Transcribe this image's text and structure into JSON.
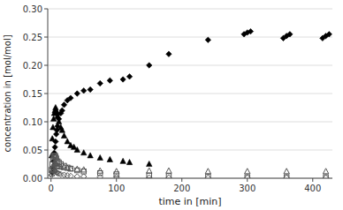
{
  "chart_data": {
    "type": "scatter",
    "xlabel": "time in [min]",
    "ylabel": "concentration in [mol/mol]",
    "xlim": [
      -5,
      430
    ],
    "ylim": [
      0,
      0.3
    ],
    "xticks": [
      0,
      100,
      200,
      300,
      400
    ],
    "yticks": [
      {
        "value": 0.0,
        "label": "0.00"
      },
      0.05,
      {
        "value": 0.1,
        "label": "0.10"
      },
      0.15,
      {
        "value": 0.2,
        "label": "0.20"
      },
      0.25,
      {
        "value": 0.3,
        "label": "0.30"
      }
    ],
    "grid": "y",
    "series": [
      {
        "color": "#000000",
        "marker": "diamond",
        "x": [
          2,
          3,
          4,
          5,
          6,
          7,
          8,
          9,
          10,
          12,
          15,
          17,
          20,
          25,
          30,
          40,
          50,
          60,
          75,
          90,
          110,
          120,
          150,
          180,
          240,
          295,
          300,
          305,
          355,
          360,
          365,
          415,
          420,
          425
        ],
        "values": [
          0.01,
          0.018,
          0.03,
          0.045,
          0.055,
          0.065,
          0.078,
          0.085,
          0.092,
          0.105,
          0.115,
          0.12,
          0.13,
          0.138,
          0.142,
          0.15,
          0.155,
          0.157,
          0.168,
          0.173,
          0.175,
          0.18,
          0.2,
          0.22,
          0.245,
          0.255,
          0.258,
          0.26,
          0.248,
          0.252,
          0.255,
          0.248,
          0.252,
          0.255
        ]
      },
      {
        "color": "#000000",
        "marker": "triangle",
        "x": [
          1,
          2,
          3,
          4,
          5,
          6,
          7,
          8,
          9,
          10,
          12,
          15,
          17,
          20,
          25,
          30,
          35,
          40,
          50,
          60,
          75,
          90,
          110,
          120,
          150
        ],
        "values": [
          0.04,
          0.07,
          0.09,
          0.105,
          0.115,
          0.12,
          0.125,
          0.12,
          0.115,
          0.11,
          0.1,
          0.09,
          0.085,
          0.075,
          0.065,
          0.058,
          0.055,
          0.05,
          0.045,
          0.04,
          0.036,
          0.033,
          0.03,
          0.028,
          0.025
        ]
      },
      {
        "color": "#555555",
        "marker": "open-square",
        "x": [
          1,
          2,
          3,
          4,
          5,
          6,
          7,
          8,
          10,
          12,
          15,
          20,
          25,
          30,
          40,
          50,
          75,
          100,
          150,
          180,
          240,
          300,
          360,
          420
        ],
        "values": [
          0.015,
          0.025,
          0.033,
          0.037,
          0.04,
          0.04,
          0.038,
          0.035,
          0.03,
          0.028,
          0.025,
          0.022,
          0.019,
          0.017,
          0.014,
          0.012,
          0.009,
          0.007,
          0.005,
          0.004,
          0.003,
          0.002,
          0.002,
          0.002
        ]
      },
      {
        "color": "#555555",
        "marker": "open-triangle",
        "x": [
          1,
          2,
          3,
          4,
          5,
          6,
          7,
          8,
          10,
          12,
          15,
          20,
          25,
          30,
          40,
          50,
          75,
          100,
          150,
          180,
          240,
          300,
          360,
          420
        ],
        "values": [
          0.008,
          0.015,
          0.02,
          0.024,
          0.026,
          0.027,
          0.026,
          0.025,
          0.022,
          0.021,
          0.02,
          0.019,
          0.018,
          0.017,
          0.016,
          0.015,
          0.013,
          0.012,
          0.013,
          0.013,
          0.012,
          0.012,
          0.012,
          0.012
        ]
      },
      {
        "color": "#555555",
        "marker": "open-diamond",
        "x": [
          1,
          2,
          3,
          4,
          5,
          6,
          7,
          8,
          9,
          10,
          12,
          15,
          20,
          25,
          30,
          40,
          50,
          75,
          100,
          150,
          180,
          240,
          300,
          360,
          420
        ],
        "values": [
          0.006,
          0.01,
          0.012,
          0.013,
          0.013,
          0.013,
          0.012,
          0.011,
          0.01,
          0.009,
          0.008,
          0.007,
          0.006,
          0.005,
          0.004,
          0.003,
          0.003,
          0.002,
          0.002,
          0.001,
          0.001,
          0.001,
          0.001,
          0.001,
          0.001
        ]
      }
    ]
  }
}
